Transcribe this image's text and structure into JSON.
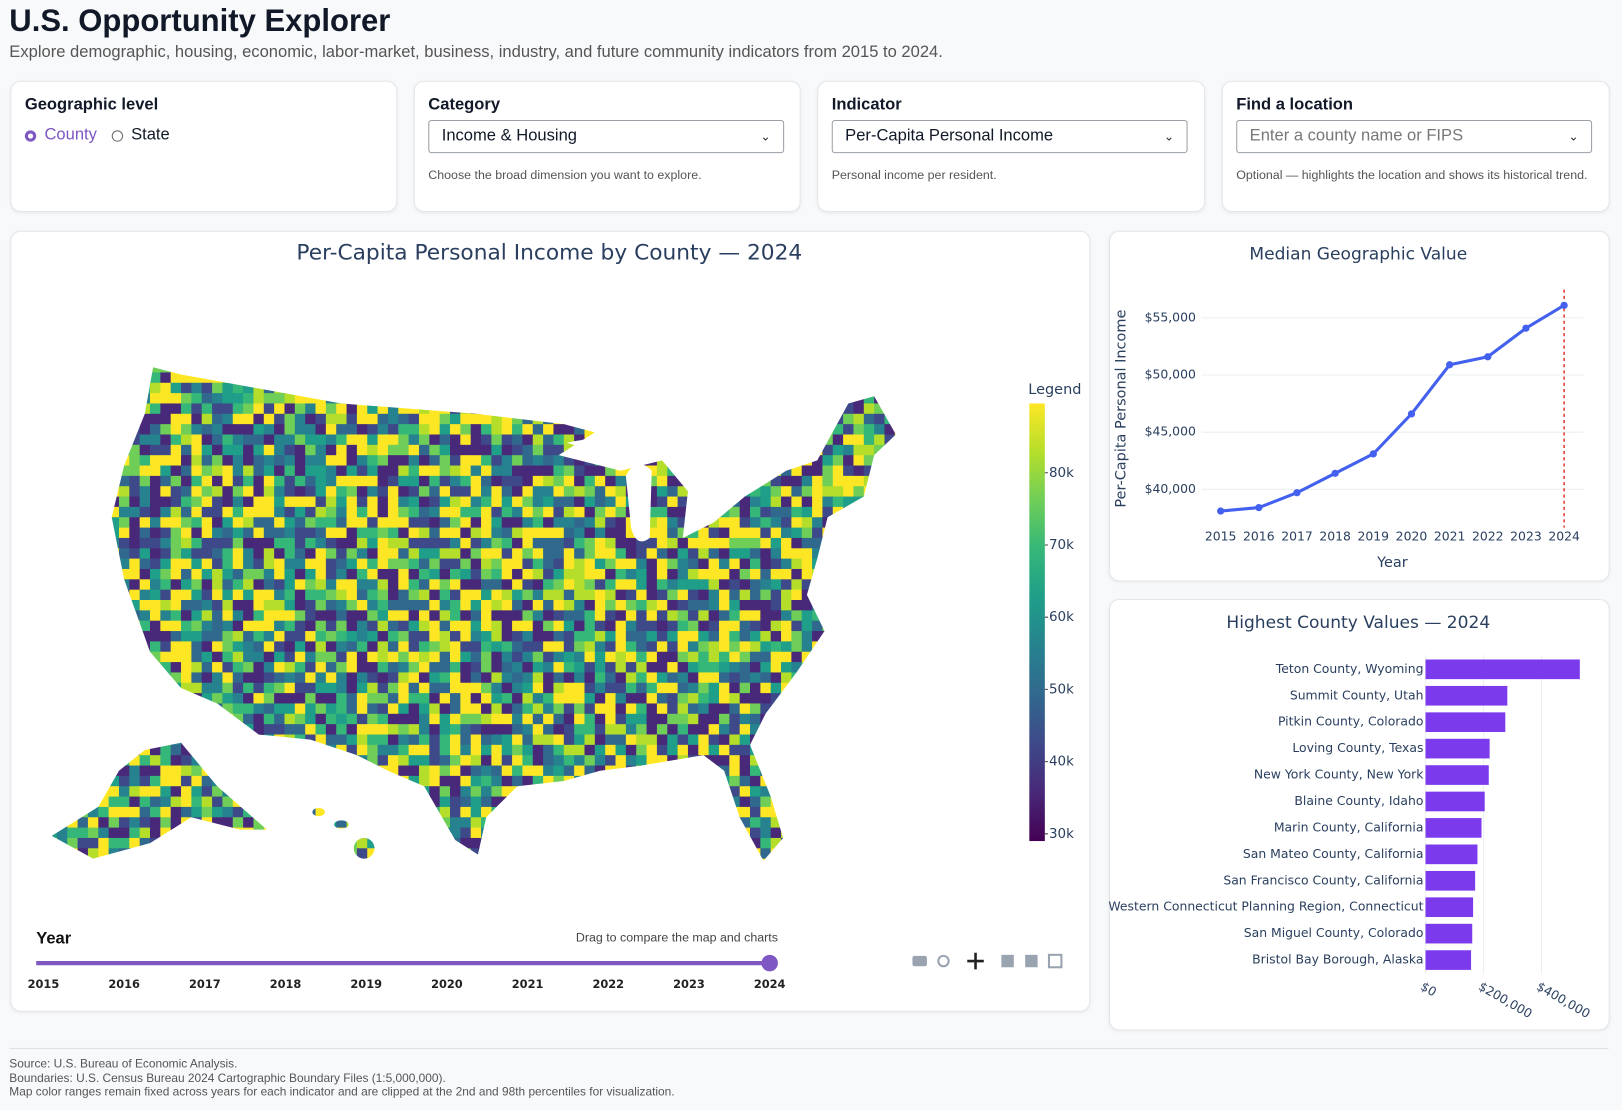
{
  "header": {
    "title": "U.S. Opportunity Explorer",
    "subtitle": "Explore demographic, housing, economic, labor-market, business, industry, and future community indicators from 2015 to 2024."
  },
  "controls": {
    "geographic_level": {
      "label": "Geographic level",
      "options": [
        "County",
        "State"
      ],
      "selected": 0
    },
    "category": {
      "label": "Category",
      "value": "Income & Housing",
      "help": "Choose the broad dimension you want to explore."
    },
    "indicator": {
      "label": "Indicator",
      "value": "Per-Capita Personal Income",
      "help": "Personal income per resident."
    },
    "location": {
      "label": "Find a location",
      "placeholder": "Enter a county name or FIPS",
      "help": "Optional — highlights the location and shows its historical trend."
    }
  },
  "map": {
    "title": "Per-Capita Personal Income by County — 2024",
    "legend": {
      "title": "Legend",
      "range": [
        29000,
        89600
      ],
      "ticks": [
        {
          "value": 30000,
          "label": "30k"
        },
        {
          "value": 40000,
          "label": "40k"
        },
        {
          "value": 50000,
          "label": "50k"
        },
        {
          "value": 60000,
          "label": "60k"
        },
        {
          "value": 70000,
          "label": "70k"
        },
        {
          "value": 80000,
          "label": "80k"
        }
      ],
      "colors": [
        "#440154",
        "#482878",
        "#3e4989",
        "#31688e",
        "#26828e",
        "#1f9e89",
        "#35b779",
        "#6ece58",
        "#b5de2b",
        "#fde725"
      ]
    },
    "slider": {
      "label": "Year",
      "hint": "Drag to compare the map and charts",
      "years": [
        2015,
        2016,
        2017,
        2018,
        2019,
        2020,
        2021,
        2022,
        2023,
        2024
      ],
      "selected": 9,
      "color": "#7e57c2"
    }
  },
  "chart_data": [
    {
      "type": "line",
      "title": "Median Geographic Value",
      "x_label": "Year",
      "y_label": "Per-Capita Personal Income",
      "x": [
        2015,
        2016,
        2017,
        2018,
        2019,
        2020,
        2021,
        2022,
        2023,
        2024
      ],
      "series": [
        {
          "name": "Median",
          "color": "#4361ee",
          "values": [
            38100,
            38400,
            39700,
            41400,
            43100,
            46600,
            50900,
            51600,
            54100,
            56100
          ]
        }
      ],
      "xlim": [
        2014.5,
        2024.5
      ],
      "xticks": [
        2015,
        2016,
        2017,
        2018,
        2019,
        2020,
        2021,
        2022,
        2023,
        2024
      ],
      "ylim": [
        36650,
        57200
      ],
      "yticks": [
        {
          "value": 40000,
          "label": "$40,000"
        },
        {
          "value": 45000,
          "label": "$45,000"
        },
        {
          "value": 50000,
          "label": "$50,000"
        },
        {
          "value": 55000,
          "label": "$55,000"
        }
      ],
      "grid": true,
      "highlight_color": "#e53935"
    },
    {
      "type": "hbar",
      "title": "Highest County Values — 2024",
      "color": "#7c3aed",
      "categories": [
        "Teton County, Wyoming",
        "Summit County, Utah",
        "Pitkin County, Colorado",
        "Loving County, Texas",
        "New York County, New York",
        "Blaine County, Idaho",
        "Marin County, California",
        "San Mateo County, California",
        "San Francisco County, California",
        "Western Connecticut Planning Region, Connecticut",
        "San Miguel County, Colorado",
        "Bristol Bay Borough, Alaska"
      ],
      "values": [
        532000,
        282000,
        275000,
        221000,
        218000,
        204000,
        193000,
        179000,
        171000,
        164000,
        161000,
        157000
      ],
      "xlim": [
        0,
        560000
      ],
      "xticks": [
        {
          "value": 0,
          "label": "$0"
        },
        {
          "value": 200000,
          "label": "$200,000"
        },
        {
          "value": 400000,
          "label": "$400,000"
        }
      ],
      "grid": true
    }
  ],
  "footer": [
    "Source: U.S. Bureau of Economic Analysis.",
    "Boundaries: U.S. Census Bureau 2024 Cartographic Boundary Files (1:5,000,000).",
    "Map color ranges remain fixed across years for each indicator and are clipped at the 2nd and 98th percentiles for visualization."
  ]
}
